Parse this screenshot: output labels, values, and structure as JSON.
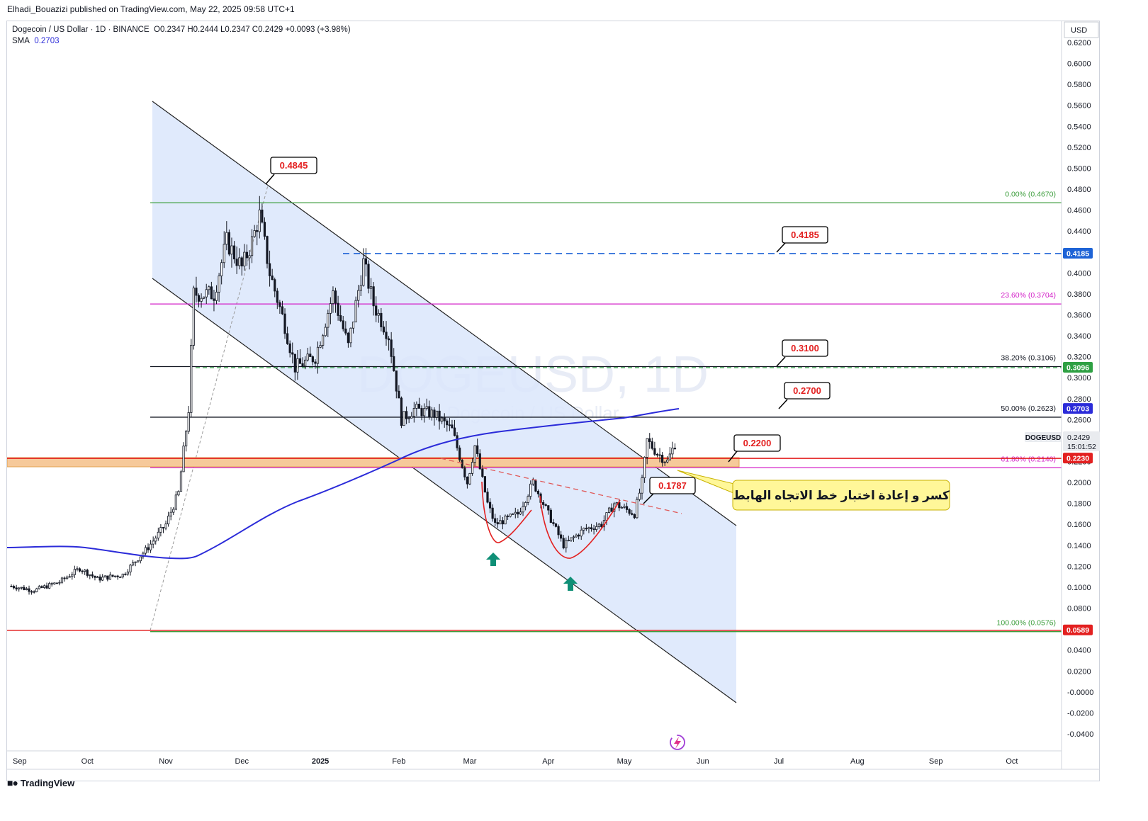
{
  "header": {
    "published": "Elhadi_Bouazizi published on TradingView.com, May 22, 2025 09:58 UTC+1"
  },
  "legend": {
    "symbol": "Dogecoin / US Dollar · 1D · BINANCE",
    "ohlc": "O0.2347 H0.2444 L0.2347 C0.2429 +0.0093 (+3.98%)",
    "sma_label": "SMA",
    "sma_value": "0.2703"
  },
  "watermark": {
    "line1": "DOGEUSD, 1D",
    "line2": "Dogecoin / US Dollar"
  },
  "currency": "USD",
  "branding": "TradingView",
  "colors": {
    "channel_fill": "#dbe6fb",
    "sma": "#2b2bd9",
    "support_red": "#e32020",
    "resistance_blue": "#1e63d6",
    "fib_green": "#3d9e3d",
    "fib_magenta": "#d321c8",
    "zone_orange": "#f6c99a",
    "callout_yellow": "#fff799",
    "arrow_teal": "#0f8f76"
  },
  "chart_data": {
    "type": "candlestick",
    "y_axis": {
      "min": -0.04,
      "max": 0.62,
      "ticks": [
        "0.6200",
        "0.6000",
        "0.5800",
        "0.5600",
        "0.5400",
        "0.5200",
        "0.5000",
        "0.4800",
        "0.4600",
        "0.4400",
        "0.4200",
        "0.4000",
        "0.3800",
        "0.3600",
        "0.3400",
        "0.3200",
        "0.3000",
        "0.2800",
        "0.2600",
        "0.2400",
        "0.2200",
        "0.2000",
        "0.1800",
        "0.1600",
        "0.1400",
        "0.1200",
        "0.1000",
        "0.0800",
        "0.0600",
        "0.0400",
        "0.0200",
        "-0.0000",
        "-0.0200",
        "-0.0400"
      ]
    },
    "x_axis": {
      "labels": [
        "Sep",
        "Oct",
        "Nov",
        "Dec",
        "2025",
        "Feb",
        "Mar",
        "Apr",
        "May",
        "Jun",
        "Jul",
        "Aug",
        "Sep",
        "Oct"
      ]
    },
    "price_path": [
      [
        "2024-09-01",
        0.101
      ],
      [
        "2024-09-10",
        0.097
      ],
      [
        "2024-09-20",
        0.105
      ],
      [
        "2024-09-28",
        0.118
      ],
      [
        "2024-10-05",
        0.108
      ],
      [
        "2024-10-15",
        0.112
      ],
      [
        "2024-10-25",
        0.138
      ],
      [
        "2024-11-01",
        0.16
      ],
      [
        "2024-11-06",
        0.19
      ],
      [
        "2024-11-10",
        0.27
      ],
      [
        "2024-11-12",
        0.38
      ],
      [
        "2024-11-20",
        0.38
      ],
      [
        "2024-11-25",
        0.43
      ],
      [
        "2024-12-01",
        0.405
      ],
      [
        "2024-12-05",
        0.43
      ],
      [
        "2024-12-08",
        0.455
      ],
      [
        "2024-12-12",
        0.4
      ],
      [
        "2024-12-18",
        0.35
      ],
      [
        "2024-12-22",
        0.31
      ],
      [
        "2024-12-30",
        0.32
      ],
      [
        "2025-01-06",
        0.38
      ],
      [
        "2025-01-12",
        0.33
      ],
      [
        "2025-01-18",
        0.41
      ],
      [
        "2025-01-22",
        0.37
      ],
      [
        "2025-01-28",
        0.34
      ],
      [
        "2025-02-02",
        0.26
      ],
      [
        "2025-02-07",
        0.27
      ],
      [
        "2025-02-15",
        0.265
      ],
      [
        "2025-02-22",
        0.25
      ],
      [
        "2025-02-28",
        0.2
      ],
      [
        "2025-03-03",
        0.235
      ],
      [
        "2025-03-08",
        0.18
      ],
      [
        "2025-03-11",
        0.16
      ],
      [
        "2025-03-20",
        0.17
      ],
      [
        "2025-03-26",
        0.2
      ],
      [
        "2025-04-01",
        0.17
      ],
      [
        "2025-04-07",
        0.14
      ],
      [
        "2025-04-15",
        0.155
      ],
      [
        "2025-04-22",
        0.16
      ],
      [
        "2025-04-27",
        0.18
      ],
      [
        "2025-05-05",
        0.17
      ],
      [
        "2025-05-08",
        0.2
      ],
      [
        "2025-05-10",
        0.24
      ],
      [
        "2025-05-14",
        0.228
      ],
      [
        "2025-05-18",
        0.22
      ],
      [
        "2025-05-22",
        0.2429
      ]
    ],
    "sma": {
      "name": "SMA",
      "value": 0.2703
    },
    "horizontal_levels": [
      {
        "label": "0.4185",
        "value": 0.4185,
        "style": "dashed-blue"
      },
      {
        "label": "0.3096",
        "value": 0.3096,
        "style": "dashed-green"
      },
      {
        "label": "0.2230",
        "value": 0.223,
        "style": "solid-red"
      },
      {
        "label": "0.0589",
        "value": 0.0589,
        "style": "solid-red"
      }
    ],
    "fibonacci": [
      {
        "label": "0.00% (0.4670)",
        "value": 0.467,
        "color": "#3d9e3d"
      },
      {
        "label": "23.60% (0.3704)",
        "value": 0.3704,
        "color": "#d321c8"
      },
      {
        "label": "38.20% (0.3106)",
        "value": 0.3106,
        "color": "#131722"
      },
      {
        "label": "50.00% (0.2623)",
        "value": 0.2623,
        "color": "#131722"
      },
      {
        "label": "61.80% (0.2140)",
        "value": 0.214,
        "color": "#d321c8"
      },
      {
        "label": "100.00% (0.0576)",
        "value": 0.0576,
        "color": "#3d9e3d"
      }
    ],
    "annotations": [
      "0.4845",
      "0.4185",
      "0.3100",
      "0.2700",
      "0.2200",
      "0.1787"
    ],
    "callout_text": "كسر و إعادة اختبار خط الاتجاه الهابط",
    "price_tags": [
      {
        "text": "0.4185",
        "value": 0.4185,
        "color": "#1e63d6"
      },
      {
        "text": "0.3096",
        "value": 0.3096,
        "color": "#2ea043"
      },
      {
        "text": "0.2703",
        "value": 0.2703,
        "color": "#2b2bd9"
      },
      {
        "text": "0.2230",
        "value": 0.223,
        "color": "#e32020"
      },
      {
        "text": "0.0589",
        "value": 0.0589,
        "color": "#e32020"
      }
    ],
    "current": {
      "symbol": "DOGEUSD",
      "price": "0.2429",
      "countdown": "15:01:52"
    }
  }
}
